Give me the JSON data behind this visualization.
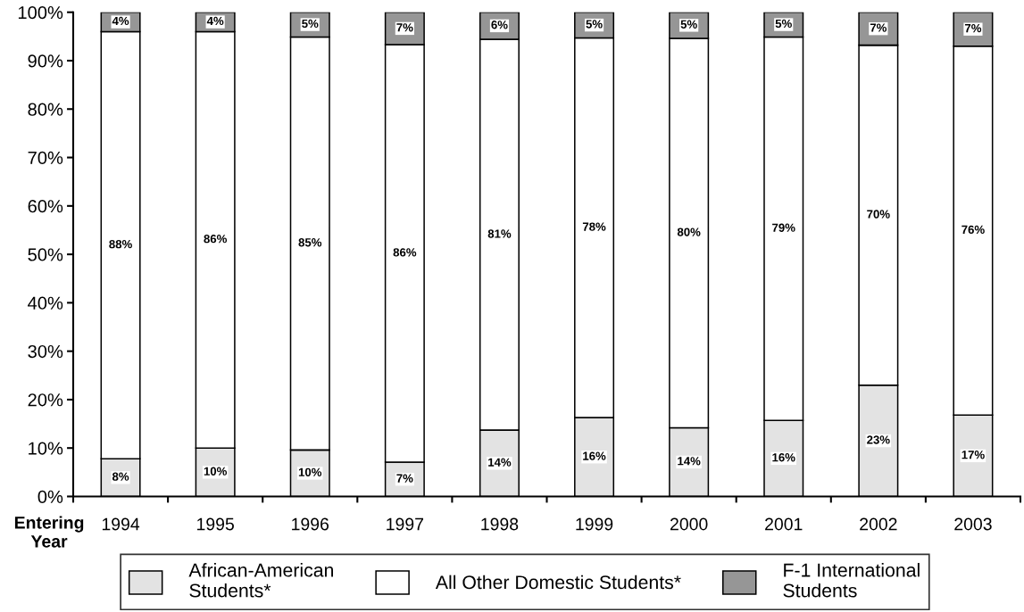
{
  "chart_data": {
    "type": "bar",
    "stacked": true,
    "categories": [
      "1994",
      "1995",
      "1996",
      "1997",
      "1998",
      "1999",
      "2000",
      "2001",
      "2002",
      "2003"
    ],
    "xlabel": "Entering\nYear",
    "series": [
      {
        "name": "African-American\nStudents*",
        "color": "#e3e3e3",
        "values": [
          7.8,
          10.0,
          9.6,
          7.1,
          13.7,
          16.3,
          14.2,
          15.7,
          23.0,
          16.8
        ],
        "value_labels": [
          "8%",
          "10%",
          "10%",
          "7%",
          "14%",
          "16%",
          "14%",
          "16%",
          "23%",
          "17%"
        ]
      },
      {
        "name": "All Other Domestic Students*",
        "color": "#ffffff",
        "values": [
          88.2,
          86.0,
          85.3,
          86.2,
          80.7,
          78.4,
          80.4,
          79.2,
          70.2,
          76.2
        ],
        "value_labels": [
          "88%",
          "86%",
          "85%",
          "86%",
          "81%",
          "78%",
          "80%",
          "79%",
          "70%",
          "76%"
        ]
      },
      {
        "name": "F-1 International\nStudents",
        "color": "#969696",
        "values": [
          4.0,
          4.0,
          5.1,
          6.7,
          5.6,
          5.3,
          5.4,
          5.1,
          6.8,
          7.0
        ],
        "value_labels": [
          "4%",
          "4%",
          "5%",
          "7%",
          "6%",
          "5%",
          "5%",
          "5%",
          "7%",
          "7%"
        ]
      }
    ],
    "ylim": [
      0,
      100
    ],
    "yticks": [
      {
        "value": 0,
        "label": "0%"
      },
      {
        "value": 10,
        "label": "10%"
      },
      {
        "value": 20,
        "label": "20%"
      },
      {
        "value": 30,
        "label": "30%"
      },
      {
        "value": 40,
        "label": "40%"
      },
      {
        "value": 50,
        "label": "50%"
      },
      {
        "value": 60,
        "label": "60%"
      },
      {
        "value": 70,
        "label": "70%"
      },
      {
        "value": 80,
        "label": "80%"
      },
      {
        "value": 90,
        "label": "90%"
      },
      {
        "value": 100,
        "label": "100%"
      }
    ],
    "grid": false,
    "legend": "bottom"
  }
}
